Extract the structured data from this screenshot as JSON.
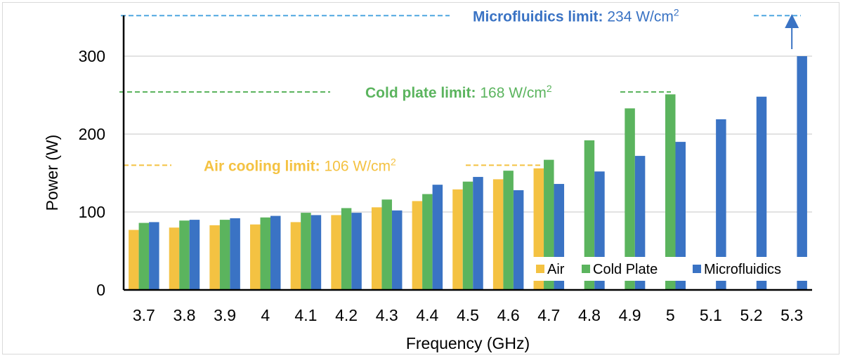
{
  "chart_data": {
    "type": "bar",
    "xlabel": "Frequency (GHz)",
    "ylabel": "Power (W)",
    "ylim": [
      0,
      350
    ],
    "yticks": [
      0,
      100,
      200,
      300
    ],
    "grid": true,
    "legend_position": "bottom-right",
    "categories": [
      "3.7",
      "3.8",
      "3.9",
      "4",
      "4.1",
      "4.2",
      "4.3",
      "4.4",
      "4.5",
      "4.6",
      "4.7",
      "4.8",
      "4.9",
      "5",
      "5.1",
      "5.2",
      "5.3"
    ],
    "series": [
      {
        "name": "Air",
        "color": "#F4C242",
        "values": [
          77,
          80,
          83,
          84,
          87,
          96,
          106,
          114,
          129,
          142,
          156,
          null,
          null,
          null,
          null,
          null,
          null
        ]
      },
      {
        "name": "Cold Plate",
        "color": "#5BB45E",
        "values": [
          86,
          89,
          90,
          93,
          99,
          105,
          116,
          123,
          139,
          153,
          167,
          192,
          233,
          251,
          null,
          null,
          null
        ]
      },
      {
        "name": "Microfluidics",
        "color": "#3A73C4",
        "values": [
          87,
          90,
          92,
          95,
          96,
          99,
          102,
          135,
          145,
          128,
          136,
          152,
          172,
          190,
          219,
          248,
          300
        ]
      }
    ],
    "limits": [
      {
        "label": "Air cooling limit:",
        "value_text": "106 W/cm",
        "sup": "2",
        "y": 160,
        "color": "#F4C242",
        "value_color": "#F4C242"
      },
      {
        "label": "Cold plate limit:",
        "value_text": "168 W/cm",
        "sup": "2",
        "y": 254,
        "color": "#5BB45E",
        "value_color": "#5BB45E"
      },
      {
        "label": "Microfluidics  limit:",
        "value_text": "234 W/cm",
        "sup": "2",
        "y": 352,
        "color": "#4FA7E0",
        "value_color": "#3A73C4"
      }
    ]
  }
}
